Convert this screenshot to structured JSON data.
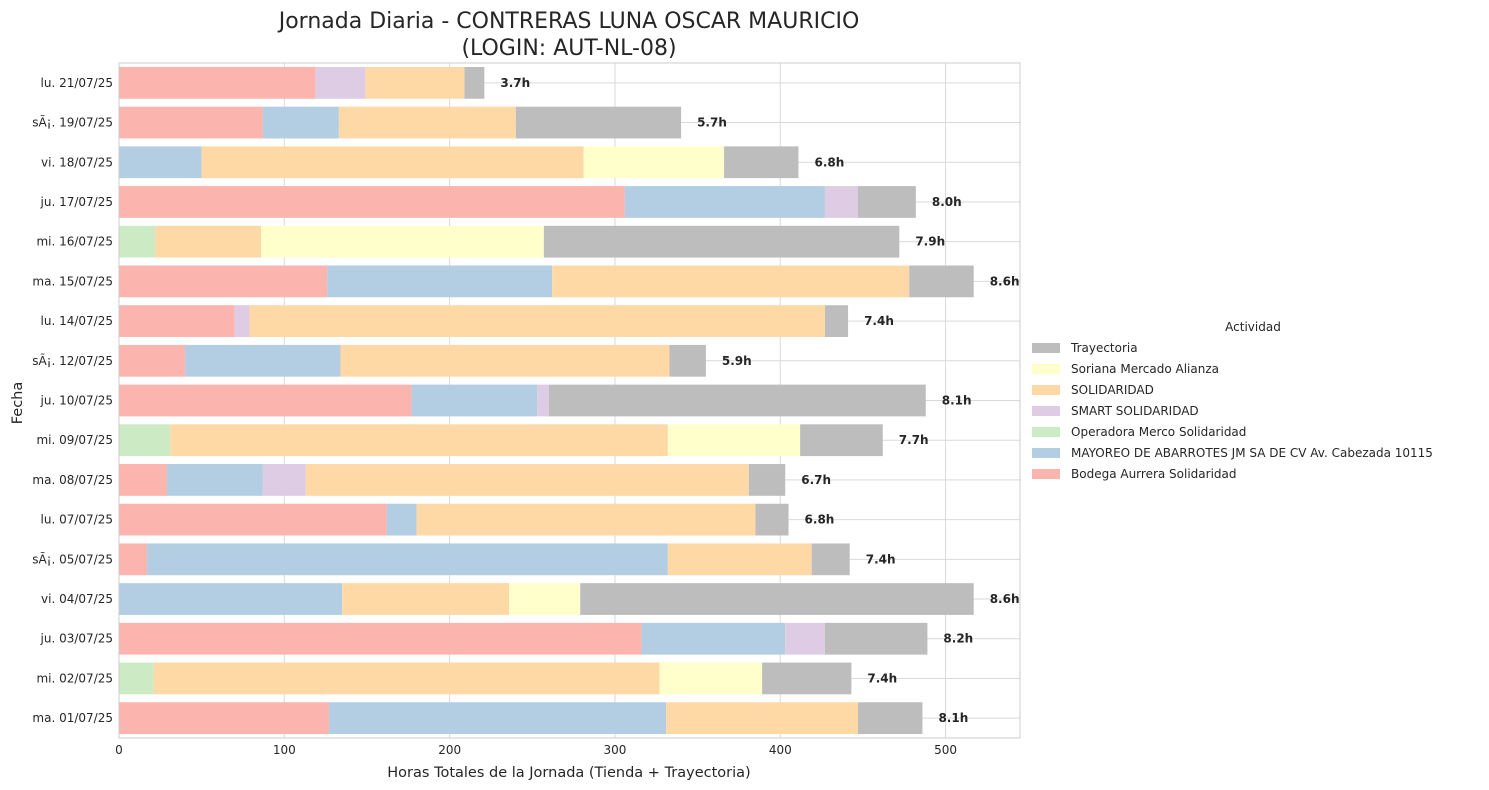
{
  "chart_data": {
    "type": "bar",
    "orientation": "horizontal",
    "stacked": true,
    "title_line1": "Jornada Diaria - CONTRERAS LUNA OSCAR MAURICIO",
    "title_line2": "(LOGIN: AUT-NL-08)",
    "xlabel": "Horas Totales de la Jornada (Tienda + Trayectoria)",
    "ylabel": "Fecha",
    "xlim": [
      0,
      545
    ],
    "xticks": [
      0,
      100,
      200,
      300,
      400,
      500
    ],
    "grid": true,
    "legend_title": "Actividad",
    "legend_position": "right",
    "categories": [
      "lu. 21/07/25",
      "sÃ¡. 19/07/25",
      "vi. 18/07/25",
      "ju. 17/07/25",
      "mi. 16/07/25",
      "ma. 15/07/25",
      "lu. 14/07/25",
      "sÃ¡. 12/07/25",
      "ju. 10/07/25",
      "mi. 09/07/25",
      "ma. 08/07/25",
      "lu. 07/07/25",
      "sÃ¡. 05/07/25",
      "vi. 04/07/25",
      "ju. 03/07/25",
      "mi. 02/07/25",
      "ma. 01/07/25"
    ],
    "total_labels": [
      "3.7h",
      "5.7h",
      "6.8h",
      "8.0h",
      "7.9h",
      "8.6h",
      "7.4h",
      "5.9h",
      "8.1h",
      "7.7h",
      "6.7h",
      "6.8h",
      "7.4h",
      "8.6h",
      "8.2h",
      "7.4h",
      "8.1h"
    ],
    "series": [
      {
        "name": "Bodega Aurrera Solidaridad",
        "color": "#fbb4ae",
        "values": [
          119,
          87,
          0,
          306,
          0,
          126,
          70,
          40,
          177,
          0,
          29,
          162,
          17,
          0,
          316,
          0,
          127
        ]
      },
      {
        "name": "MAYOREO DE ABARROTES JM SA DE CV Av. Cabezada 10115",
        "color": "#b3cde3",
        "values": [
          0,
          46,
          50,
          121,
          0,
          136,
          0,
          94,
          76,
          0,
          58,
          18,
          315,
          135,
          87,
          0,
          204
        ]
      },
      {
        "name": "Operadora Merco Solidaridad",
        "color": "#ccebc5",
        "values": [
          0,
          0,
          0,
          0,
          22,
          0,
          0,
          0,
          0,
          31,
          0,
          0,
          0,
          0,
          0,
          21,
          0
        ]
      },
      {
        "name": "SMART SOLIDARIDAD",
        "color": "#decbe4",
        "values": [
          30,
          0,
          0,
          20,
          0,
          0,
          9,
          0,
          7,
          0,
          26,
          0,
          0,
          0,
          24,
          0,
          0
        ]
      },
      {
        "name": "SOLIDARIDAD",
        "color": "#fed9a6",
        "values": [
          60,
          107,
          231,
          0,
          64,
          216,
          348,
          199,
          0,
          301,
          268,
          205,
          87,
          101,
          0,
          306,
          116
        ]
      },
      {
        "name": "Soriana Mercado Alianza",
        "color": "#ffffcc",
        "values": [
          0,
          0,
          85,
          0,
          171,
          0,
          0,
          0,
          0,
          80,
          0,
          0,
          0,
          43,
          0,
          62,
          0
        ]
      },
      {
        "name": "Trayectoria",
        "color": "#bdbdbd",
        "values": [
          12,
          100,
          45,
          35,
          215,
          39,
          14,
          22,
          228,
          50,
          22,
          20,
          23,
          238,
          62,
          54,
          39
        ]
      }
    ]
  }
}
